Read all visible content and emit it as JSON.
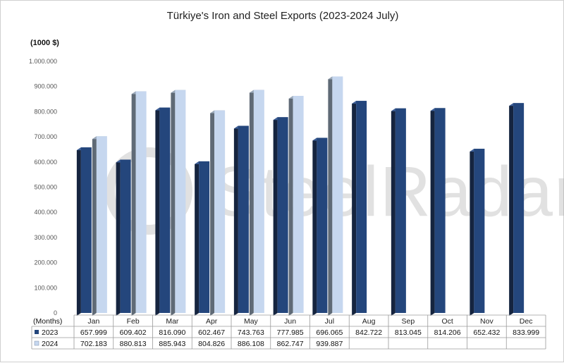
{
  "chart_data": {
    "type": "bar",
    "title": "Türkiye's Iron and Steel Exports (2023-2024 July)",
    "unit_label": "(1000 $)",
    "table_header": "(Months)",
    "categories": [
      "Jan",
      "Feb",
      "Mar",
      "Apr",
      "May",
      "Jun",
      "Jul",
      "Aug",
      "Sep",
      "Oct",
      "Nov",
      "Dec"
    ],
    "ylim": [
      0,
      1000000
    ],
    "yticks": [
      0,
      100000,
      200000,
      300000,
      400000,
      500000,
      600000,
      700000,
      800000,
      900000,
      1000000
    ],
    "ytick_labels": [
      "0",
      "100.000",
      "200.000",
      "300.000",
      "400.000",
      "500.000",
      "600.000",
      "700.000",
      "800.000",
      "900.000",
      "1.000.000"
    ],
    "series": [
      {
        "name": "2023",
        "color": "#24467c",
        "values": [
          657999,
          609402,
          816090,
          602467,
          743763,
          777985,
          696065,
          842722,
          813045,
          814206,
          652432,
          833999
        ],
        "labels": [
          "657.999",
          "609.402",
          "816.090",
          "602.467",
          "743.763",
          "777.985",
          "696.065",
          "842.722",
          "813.045",
          "814.206",
          "652.432",
          "833.999"
        ]
      },
      {
        "name": "2024",
        "color": "#c6d7ef",
        "values": [
          702183,
          880813,
          885943,
          804826,
          886108,
          862747,
          939887,
          null,
          null,
          null,
          null,
          null
        ],
        "labels": [
          "702.183",
          "880.813",
          "885.943",
          "804.826",
          "886.108",
          "862.747",
          "939.887",
          "",
          "",
          "",
          "",
          ""
        ]
      }
    ],
    "legend": "data-table",
    "grid": false,
    "watermark": "SteelRadar"
  }
}
